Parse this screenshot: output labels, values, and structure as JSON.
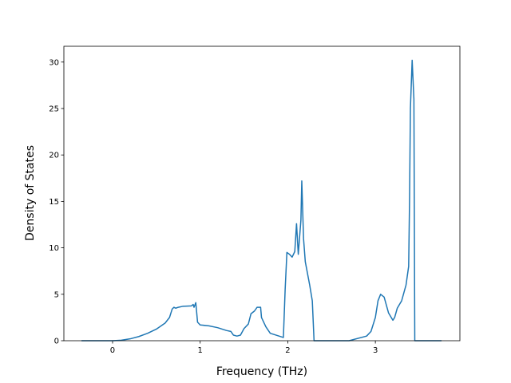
{
  "chart_data": {
    "type": "line",
    "xlabel": "Frequency (THz)",
    "ylabel": "Density of States",
    "x": [
      -0.355,
      0,
      0.1,
      0.2,
      0.3,
      0.4,
      0.5,
      0.6,
      0.65,
      0.68,
      0.7,
      0.72,
      0.75,
      0.8,
      0.9,
      0.92,
      0.93,
      0.95,
      0.97,
      1.0,
      1.1,
      1.2,
      1.3,
      1.35,
      1.38,
      1.42,
      1.46,
      1.5,
      1.55,
      1.58,
      1.62,
      1.65,
      1.69,
      1.7,
      1.75,
      1.8,
      1.9,
      1.95,
      1.97,
      1.99,
      2.02,
      2.05,
      2.08,
      2.1,
      2.12,
      2.15,
      2.16,
      2.18,
      2.2,
      2.25,
      2.28,
      2.3,
      2.7,
      2.9,
      2.95,
      3.0,
      3.03,
      3.06,
      3.1,
      3.15,
      3.2,
      3.22,
      3.25,
      3.3,
      3.35,
      3.38,
      3.39,
      3.4,
      3.42,
      3.44,
      3.45,
      3.755
    ],
    "values": [
      0,
      0,
      0.05,
      0.2,
      0.45,
      0.8,
      1.25,
      1.9,
      2.5,
      3.4,
      3.6,
      3.5,
      3.6,
      3.7,
      3.75,
      3.9,
      3.6,
      4.1,
      2.0,
      1.7,
      1.6,
      1.4,
      1.1,
      1.0,
      0.6,
      0.5,
      0.6,
      1.3,
      1.8,
      2.9,
      3.2,
      3.6,
      3.6,
      2.5,
      1.5,
      0.8,
      0.5,
      0.35,
      5.5,
      9.5,
      9.3,
      9.0,
      9.6,
      12.6,
      9.3,
      13,
      17.2,
      11,
      8.5,
      6.0,
      4.3,
      0,
      0,
      0.5,
      1.0,
      2.5,
      4.3,
      5.0,
      4.7,
      3.0,
      2.2,
      2.5,
      3.5,
      4.3,
      6.0,
      8.0,
      15,
      25,
      30.2,
      26,
      0,
      0
    ],
    "color": "#1f77b4",
    "xlim": [
      -0.556,
      3.965
    ],
    "xticks": [
      0,
      1,
      2,
      3
    ],
    "ylim": [
      0,
      31.7
    ],
    "yticks": [
      0,
      5,
      10,
      15,
      20,
      25,
      30
    ],
    "grid": false
  }
}
